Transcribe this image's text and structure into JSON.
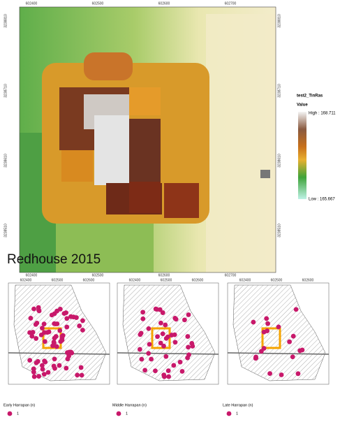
{
  "map": {
    "title": "Redhouse 2015",
    "top_ticks": [
      "602400",
      "602500",
      "602600",
      "602700"
    ],
    "bottom_ticks": [
      "602400",
      "602500",
      "602600",
      "602700"
    ],
    "left_ticks": [
      "3238810",
      "3238710",
      "3238610",
      "3238510"
    ],
    "right_ticks": [
      "3238810",
      "3238710",
      "3238610",
      "3238510"
    ]
  },
  "legend": {
    "layer": "test2_TinRas",
    "field": "Value",
    "high": "High : 168.711",
    "low": "Low : 165.667"
  },
  "panels": [
    {
      "label": "Early Harrapan (n)",
      "count": "1",
      "ticks": [
        "602400",
        "602500",
        "602600"
      ]
    },
    {
      "label": "Middle Harrapan (n)",
      "count": "1",
      "ticks": [
        "602400",
        "602500",
        "602600"
      ]
    },
    {
      "label": "Late Harrapan (n)",
      "count": "1",
      "ticks": [
        "602400",
        "602500",
        "602600"
      ]
    }
  ]
}
